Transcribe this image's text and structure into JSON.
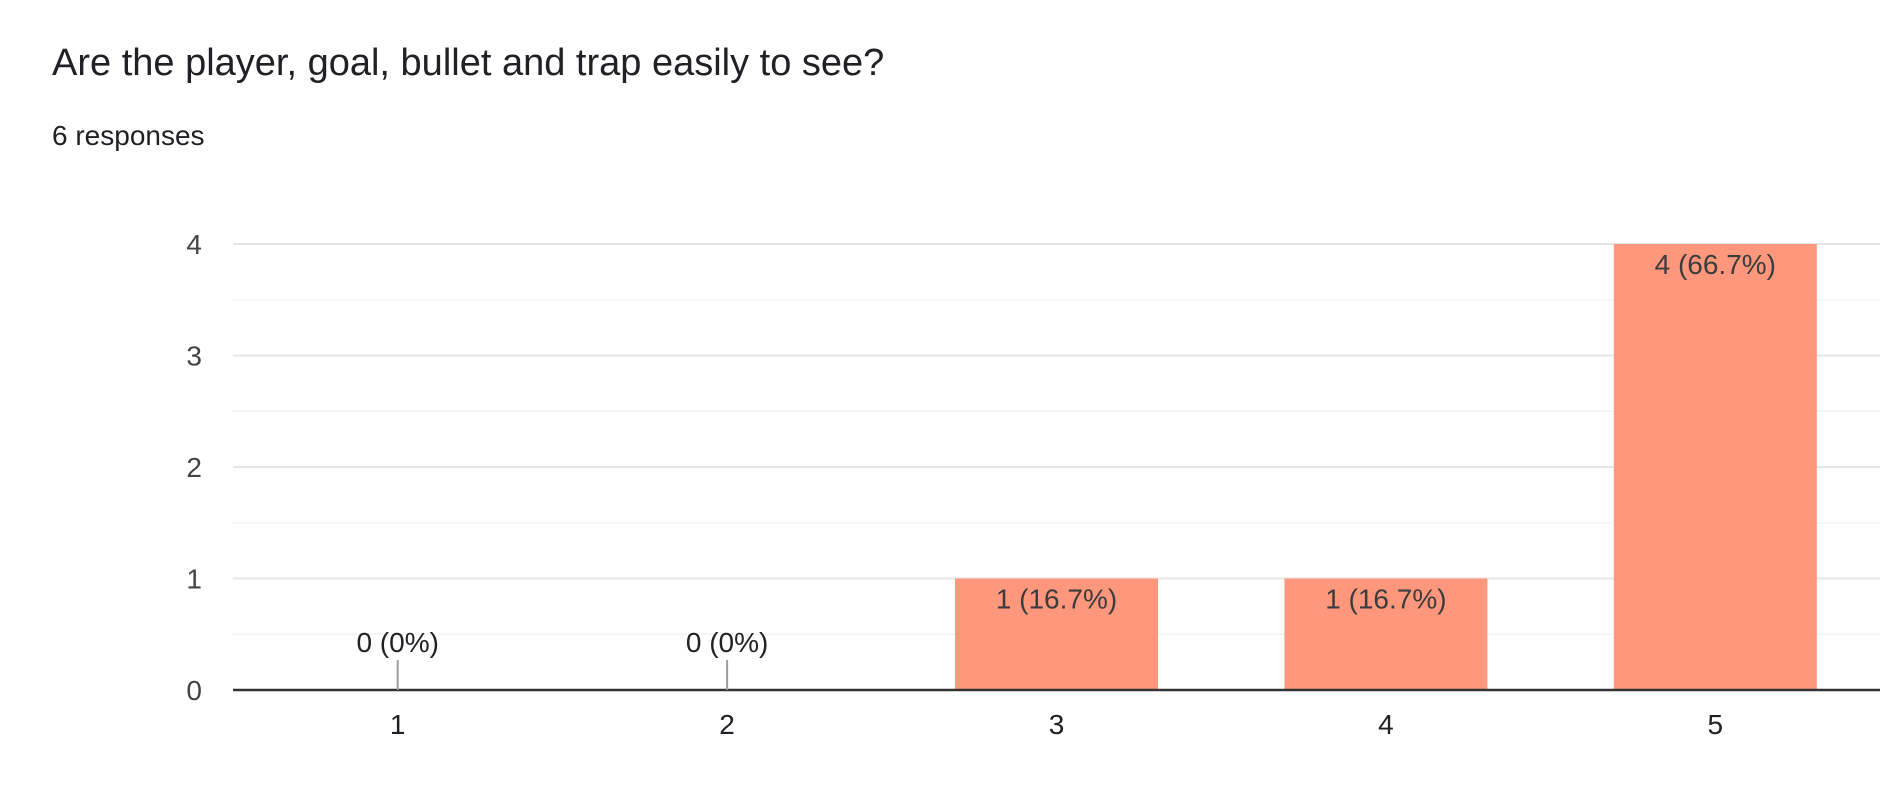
{
  "question": {
    "title": "Are the player, goal, bullet and trap easily to see?",
    "response_count": "6 responses"
  },
  "colors": {
    "bar": "#ff977c",
    "gridline": "#e6e6e6",
    "axis": "#333333"
  },
  "chart_data": {
    "type": "bar",
    "categories": [
      "1",
      "2",
      "3",
      "4",
      "5"
    ],
    "values": [
      0,
      0,
      1,
      1,
      4
    ],
    "data_labels": [
      "0 (0%)",
      "0 (0%)",
      "1 (16.7%)",
      "1 (16.7%)",
      "4 (66.7%)"
    ],
    "title": "",
    "xlabel": "",
    "ylabel": "",
    "ylim": [
      0,
      4
    ],
    "yticks": [
      "0",
      "1",
      "2",
      "3",
      "4"
    ],
    "grid": true,
    "legend": "none"
  }
}
